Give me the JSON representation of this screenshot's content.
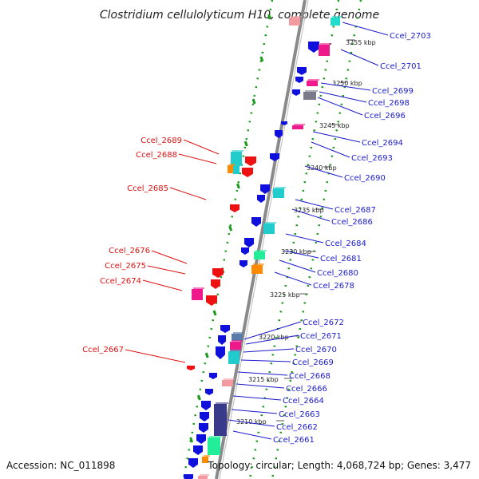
{
  "title": "Clostridium cellulolyticum H10, complete genome",
  "footer": {
    "accession": "Accession: NC_011898",
    "topology": "Topology: circular; Length: 4,068,724 bp; Genes: 3,477"
  },
  "colors": {
    "left_labels": "#dd1111",
    "right_labels": "#1a1acc",
    "backbone": "#8a8a8a",
    "dots": "#1a9a1a"
  },
  "kbp_ticks": [
    "3255 kbp",
    "3250 kbp",
    "3245 kbp",
    "3240 kbp",
    "3235 kbp",
    "3230 kbp",
    "3225 kbp",
    "3220 kbp",
    "3215 kbp",
    "3210 kbp"
  ],
  "left_genes": [
    "Ccel_2689",
    "Ccel_2688",
    "Ccel_2685",
    "Ccel_2676",
    "Ccel_2675",
    "Ccel_2674",
    "Ccel_2667"
  ],
  "right_genes": [
    "Ccel_2703",
    "Ccel_2701",
    "Ccel_2699",
    "Ccel_2698",
    "Ccel_2696",
    "Ccel_2694",
    "Ccel_2693",
    "Ccel_2690",
    "Ccel_2687",
    "Ccel_2686",
    "Ccel_2684",
    "Ccel_2681",
    "Ccel_2680",
    "Ccel_2678",
    "Ccel_2672",
    "Ccel_2671",
    "Ccel_2670",
    "Ccel_2669",
    "Ccel_2668",
    "Ccel_2666",
    "Ccel_2664",
    "Ccel_2663",
    "Ccel_2662",
    "Ccel_2661"
  ]
}
